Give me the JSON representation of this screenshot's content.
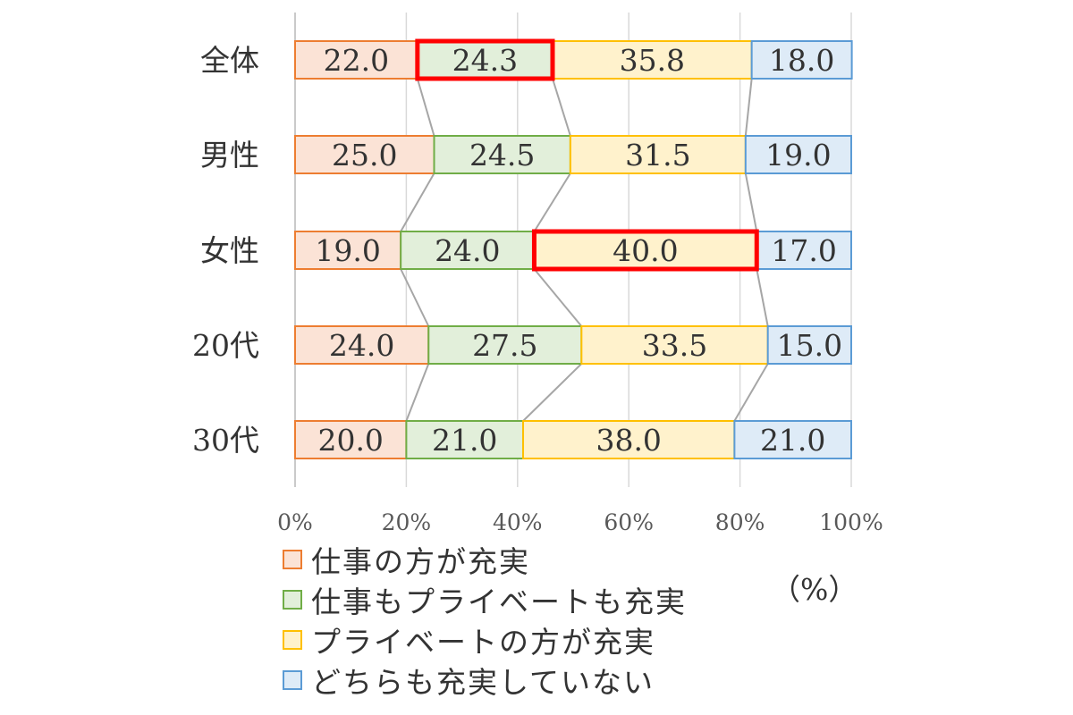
{
  "chart_data": {
    "type": "bar",
    "orientation": "horizontal",
    "stacked_percent": true,
    "categories": [
      "全体",
      "男性",
      "女性",
      "20代",
      "30代"
    ],
    "series": [
      {
        "name": "仕事の方が充実",
        "values": [
          22.0,
          25.0,
          19.0,
          24.0,
          20.0
        ],
        "labels": [
          "22.0",
          "25.0",
          "19.0",
          "24.0",
          "20.0"
        ],
        "fill": "#fbe3d6",
        "stroke": "#ed7d31"
      },
      {
        "name": "仕事もプライベートも充実",
        "values": [
          24.3,
          24.5,
          24.0,
          27.5,
          21.0
        ],
        "labels": [
          "24.3",
          "24.5",
          "24.0",
          "27.5",
          "21.0"
        ],
        "fill": "#e2efda",
        "stroke": "#70ad47"
      },
      {
        "name": "プライベートの方が充実",
        "values": [
          35.8,
          31.5,
          40.0,
          33.5,
          38.0
        ],
        "labels": [
          "35.8",
          "31.5",
          "40.0",
          "33.5",
          "38.0"
        ],
        "fill": "#fff2cc",
        "stroke": "#ffc000"
      },
      {
        "name": "どちらも充実していない",
        "values": [
          18.0,
          19.0,
          17.0,
          15.0,
          21.0
        ],
        "labels": [
          "18.0",
          "19.0",
          "17.0",
          "15.0",
          "21.0"
        ],
        "fill": "#deebf7",
        "stroke": "#5b9bd5"
      }
    ],
    "x_ticks": [
      "0%",
      "20%",
      "40%",
      "60%",
      "80%",
      "100%"
    ],
    "xlim": [
      0,
      100
    ],
    "unit_label": "（%）",
    "series_lines": true,
    "highlights": [
      {
        "category": "全体",
        "series": "仕事もプライベートも充実",
        "color": "#ff0000"
      },
      {
        "category": "女性",
        "series": "プライベートの方が充実",
        "color": "#ff0000"
      }
    ],
    "grid": true,
    "legend_position": "bottom-left"
  }
}
